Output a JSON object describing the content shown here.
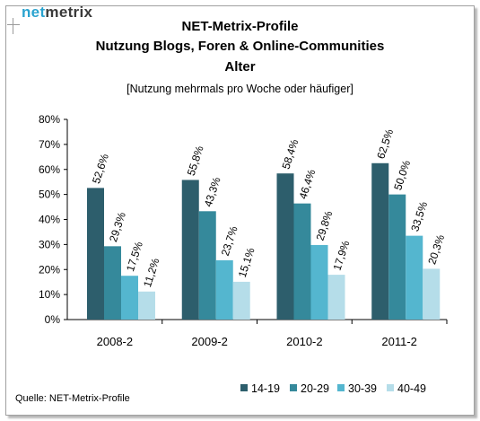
{
  "logo": {
    "part1": "net",
    "part2": "metrix"
  },
  "chart_data": {
    "type": "bar",
    "title": [
      "NET-Metrix-Profile",
      "Nutzung Blogs, Foren & Online-Communities",
      "Alter"
    ],
    "subtitle": "[Nutzung mehrmals pro Woche oder häufiger]",
    "categories": [
      "2008-2",
      "2009-2",
      "2010-2",
      "2011-2"
    ],
    "series": [
      {
        "name": "14-19",
        "color": "#2d5e6c",
        "values": [
          52.6,
          55.8,
          58.4,
          62.5
        ],
        "labels": [
          "52,6%",
          "55,8%",
          "58,4%",
          "62,5%"
        ]
      },
      {
        "name": "20-29",
        "color": "#35899b",
        "values": [
          29.3,
          43.3,
          46.4,
          50.0
        ],
        "labels": [
          "29,3%",
          "43,3%",
          "46,4%",
          "50,0%"
        ]
      },
      {
        "name": "30-39",
        "color": "#54b6cf",
        "values": [
          17.5,
          23.7,
          29.8,
          33.5
        ],
        "labels": [
          "17,5%",
          "23,7%",
          "29,8%",
          "33,5%"
        ]
      },
      {
        "name": "40-49",
        "color": "#b5dde9",
        "values": [
          11.2,
          15.1,
          17.9,
          20.3
        ],
        "labels": [
          "11,2%",
          "15,1%",
          "17,9%",
          "20,3%"
        ]
      }
    ],
    "ylim": [
      0,
      80
    ],
    "yticks": [
      "0%",
      "10%",
      "20%",
      "30%",
      "40%",
      "50%",
      "60%",
      "70%",
      "80%"
    ],
    "grid": false,
    "legend_position": "bottom-right"
  },
  "source": "Quelle: NET-Metrix-Profile"
}
